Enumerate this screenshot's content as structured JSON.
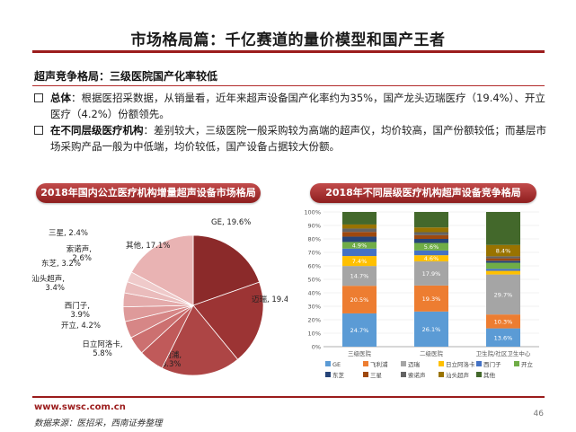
{
  "header": {
    "title": "市场格局篇：千亿赛道的量价模型和国产王者"
  },
  "subtitle": "超声竞争格局：三级医院国产化率较低",
  "bullets": [
    {
      "label": "总体",
      "text": "：根据医招采数据，从销量看，近年来超声设备国产化率约为35%，国产龙头迈瑞医疗（19.4%）、开立医疗（4.2%）份额领先。"
    },
    {
      "label": "在不同层级医疗机构",
      "text": "：差别较大，三级医院一般采购较为高端的超声仪，均价较高，国产份额较低；而基层市场采购产品一般为中低端，均价较低，国产设备占据较大份额。"
    }
  ],
  "panels": {
    "left_title": "2018年国内公立医疗机构增量超声设备市场格局",
    "right_title": "2018年不同层级医疗机构超声设备竞争格局"
  },
  "chart_data": [
    {
      "type": "pie",
      "slices": [
        {
          "name": "GE",
          "value": 19.6,
          "label": "GE, 19.6%",
          "color": "#8b2a2a"
        },
        {
          "name": "迈瑞",
          "value": 19.4,
          "label": "迈瑞, 19.4%",
          "color": "#9c3434"
        },
        {
          "name": "飞利浦",
          "value": 18.3,
          "label": "飞利浦,\n18.3%",
          "color": "#ad4545"
        },
        {
          "name": "日立阿洛卡",
          "value": 5.8,
          "label": "日立阿洛卡,\n5.8%",
          "color": "#c05a5a"
        },
        {
          "name": "开立",
          "value": 4.2,
          "label": "开立, 4.2%",
          "color": "#cc7070"
        },
        {
          "name": "西门子",
          "value": 3.9,
          "label": "西门子,\n3.9%",
          "color": "#d68686"
        },
        {
          "name": "汕头超声",
          "value": 3.4,
          "label": "汕头超声,\n3.4%",
          "color": "#de9a9a"
        },
        {
          "name": "东芝",
          "value": 3.2,
          "label": "东芝, 3.2%",
          "color": "#e4abab"
        },
        {
          "name": "索诺声",
          "value": 2.6,
          "label": "索诺声,\n2.6%",
          "color": "#eabcbc"
        },
        {
          "name": "三星",
          "value": 2.4,
          "label": "三星, 2.4%",
          "color": "#efcaca"
        },
        {
          "name": "其他",
          "value": 17.1,
          "label": "其他, 17.1%",
          "color": "#e9b3b3"
        }
      ]
    },
    {
      "type": "bar",
      "stacked": true,
      "categories": [
        "三级医院",
        "二级医院",
        "卫生院/社区卫生中心"
      ],
      "ylim": [
        0,
        100
      ],
      "yticks": [
        "0%",
        "10%",
        "20%",
        "30%",
        "40%",
        "50%",
        "60%",
        "70%",
        "80%",
        "90%",
        "100%"
      ],
      "series": [
        {
          "name": "GE",
          "color": "#5b9bd5",
          "values": [
            24.7,
            26.1,
            13.6
          ]
        },
        {
          "name": "飞利浦",
          "color": "#ed7d31",
          "values": [
            20.5,
            19.3,
            10.3
          ]
        },
        {
          "name": "迈瑞",
          "color": "#a5a5a5",
          "values": [
            14.7,
            17.9,
            29.7
          ]
        },
        {
          "name": "日立阿洛卡",
          "color": "#ffc000",
          "values": [
            7.4,
            4.6,
            2.7
          ]
        },
        {
          "name": "西门子",
          "color": "#4472c4",
          "values": [
            5.5,
            3.5,
            1.5
          ]
        },
        {
          "name": "开立",
          "color": "#70ad47",
          "values": [
            4.9,
            5.6,
            4.5
          ]
        },
        {
          "name": "东芝",
          "color": "#264478",
          "values": [
            4.0,
            3.0,
            1.5
          ]
        },
        {
          "name": "三星",
          "color": "#9e480e",
          "values": [
            3.5,
            2.8,
            1.8
          ]
        },
        {
          "name": "索诺声",
          "color": "#636363",
          "values": [
            2.5,
            2.2,
            1.5
          ]
        },
        {
          "name": "汕头超声",
          "color": "#997300",
          "values": [
            3.0,
            3.5,
            8.4
          ]
        },
        {
          "name": "其他",
          "color": "#43682b",
          "values": [
            9.3,
            11.5,
            24.5
          ]
        }
      ],
      "data_labels": {
        "GE": [
          "24.7%",
          "26.1%",
          "13.6%"
        ],
        "飞利浦": [
          "20.5%",
          "19.3%",
          "10.3%"
        ],
        "迈瑞": [
          "14.7%",
          "17.9%",
          "29.7%"
        ],
        "日立阿洛卡": [
          "7.4%",
          "4.6%",
          ""
        ],
        "开立": [
          "4.9%",
          "5.6%",
          ""
        ],
        "汕头超声": [
          "",
          "",
          "8.4%"
        ]
      },
      "legend": [
        "GE",
        "飞利浦",
        "迈瑞",
        "日立阿洛卡",
        "西门子",
        "开立",
        "东芝",
        "三星",
        "索诺声",
        "汕头超声",
        "其他"
      ]
    }
  ],
  "footer": {
    "url": "www.swsc.com.cn",
    "source": "数据来源：医招采，西南证券整理",
    "page": "46"
  }
}
